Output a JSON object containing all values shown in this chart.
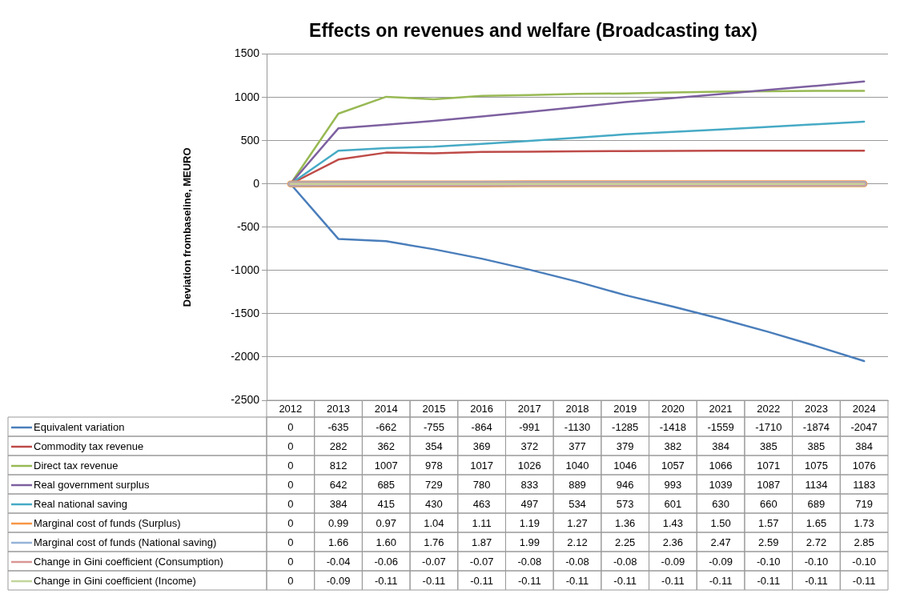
{
  "chart_data": {
    "type": "line",
    "title": "Effects on revenues and welfare (Broadcasting tax)",
    "ylabel": "Deviation frombaseline, MEURO",
    "categories": [
      "2012",
      "2013",
      "2014",
      "2015",
      "2016",
      "2017",
      "2018",
      "2019",
      "2020",
      "2021",
      "2022",
      "2023",
      "2024"
    ],
    "ylim": [
      -2500,
      1500
    ],
    "yticks": [
      -2500,
      -2000,
      -1500,
      -1000,
      -500,
      0,
      500,
      1000,
      1500
    ],
    "grid": "y",
    "legend": "bottom",
    "marker": "none",
    "line_style": "solid",
    "data_labels": true,
    "series": [
      {
        "name": "Equivalent variation",
        "color": "#4a7ebb",
        "values": [
          0,
          -635,
          -662,
          -755,
          -864,
          -991,
          -1130,
          -1285,
          -1418,
          -1559,
          -1710,
          -1874,
          -2047
        ],
        "value_labels": [
          "0",
          "-635",
          "-662",
          "-755",
          "-864",
          "-991",
          "-1130",
          "-1285",
          "-1418",
          "-1559",
          "-1710",
          "-1874",
          "-2047"
        ]
      },
      {
        "name": "Commodity tax revenue",
        "color": "#be4b48",
        "values": [
          0,
          282,
          362,
          354,
          369,
          372,
          377,
          379,
          382,
          384,
          385,
          385,
          384
        ],
        "value_labels": [
          "0",
          "282",
          "362",
          "354",
          "369",
          "372",
          "377",
          "379",
          "382",
          "384",
          "385",
          "385",
          "384"
        ]
      },
      {
        "name": "Direct tax revenue",
        "color": "#98b954",
        "values": [
          0,
          812,
          1007,
          978,
          1017,
          1026,
          1040,
          1046,
          1057,
          1066,
          1071,
          1075,
          1076
        ],
        "value_labels": [
          "0",
          "812",
          "1007",
          "978",
          "1017",
          "1026",
          "1040",
          "1046",
          "1057",
          "1066",
          "1071",
          "1075",
          "1076"
        ]
      },
      {
        "name": "Real government surplus",
        "color": "#7d60a0",
        "values": [
          0,
          642,
          685,
          729,
          780,
          833,
          889,
          946,
          993,
          1039,
          1087,
          1134,
          1183
        ],
        "value_labels": [
          "0",
          "642",
          "685",
          "729",
          "780",
          "833",
          "889",
          "946",
          "993",
          "1039",
          "1087",
          "1134",
          "1183"
        ]
      },
      {
        "name": "Real national saving",
        "color": "#46aac5",
        "values": [
          0,
          384,
          415,
          430,
          463,
          497,
          534,
          573,
          601,
          630,
          660,
          689,
          719
        ],
        "value_labels": [
          "0",
          "384",
          "415",
          "430",
          "463",
          "497",
          "534",
          "573",
          "601",
          "630",
          "660",
          "689",
          "719"
        ]
      },
      {
        "name": "Marginal cost of funds (Surplus)",
        "color": "#f79646",
        "values": [
          0,
          0.99,
          0.97,
          1.04,
          1.11,
          1.19,
          1.27,
          1.36,
          1.43,
          1.5,
          1.57,
          1.65,
          1.73
        ],
        "value_labels": [
          "0",
          "0.99",
          "0.97",
          "1.04",
          "1.11",
          "1.19",
          "1.27",
          "1.36",
          "1.43",
          "1.50",
          "1.57",
          "1.65",
          "1.73"
        ]
      },
      {
        "name": "Marginal cost of funds (National saving)",
        "color": "#95b3d7",
        "values": [
          0,
          1.66,
          1.6,
          1.76,
          1.87,
          1.99,
          2.12,
          2.25,
          2.36,
          2.47,
          2.59,
          2.72,
          2.85
        ],
        "value_labels": [
          "0",
          "1.66",
          "1.60",
          "1.76",
          "1.87",
          "1.99",
          "2.12",
          "2.25",
          "2.36",
          "2.47",
          "2.59",
          "2.72",
          "2.85"
        ]
      },
      {
        "name": "Change in Gini coefficient (Consumption)",
        "color": "#d99694",
        "values": [
          0,
          -0.04,
          -0.06,
          -0.07,
          -0.07,
          -0.08,
          -0.08,
          -0.08,
          -0.09,
          -0.09,
          -0.1,
          -0.1,
          -0.1
        ],
        "value_labels": [
          "0",
          "-0.04",
          "-0.06",
          "-0.07",
          "-0.07",
          "-0.08",
          "-0.08",
          "-0.08",
          "-0.09",
          "-0.09",
          "-0.10",
          "-0.10",
          "-0.10"
        ]
      },
      {
        "name": "Change in Gini coefficient (Income)",
        "color": "#c3d69b",
        "values": [
          0,
          -0.09,
          -0.11,
          -0.11,
          -0.11,
          -0.11,
          -0.11,
          -0.11,
          -0.11,
          -0.11,
          -0.11,
          -0.11,
          -0.11
        ],
        "value_labels": [
          "0",
          "-0.09",
          "-0.11",
          "-0.11",
          "-0.11",
          "-0.11",
          "-0.11",
          "-0.11",
          "-0.11",
          "-0.11",
          "-0.11",
          "-0.11",
          "-0.11"
        ]
      }
    ]
  }
}
